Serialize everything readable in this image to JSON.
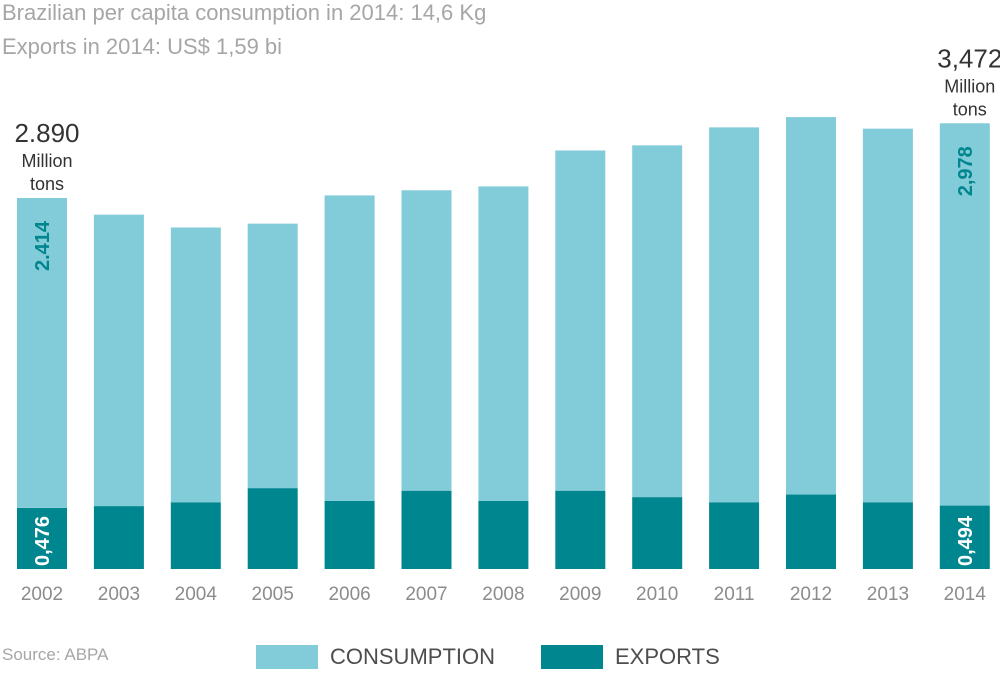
{
  "header": {
    "line1": "Brazilian per capita consumption in 2014: 14,6 Kg",
    "line2": "Exports in 2014: US$ 1,59 bi"
  },
  "source": "Source: ABPA",
  "legend": {
    "consumption": "CONSUMPTION",
    "exports": "EXPORTS"
  },
  "colors": {
    "consumption": "#82cbd8",
    "exports": "#00868f",
    "axis_text": "#8c8c8c",
    "callout_text": "#333333"
  },
  "chart_data": {
    "type": "bar",
    "stacked": true,
    "categories": [
      "2002",
      "2003",
      "2004",
      "2005",
      "2006",
      "2007",
      "2008",
      "2009",
      "2010",
      "2011",
      "2012",
      "2013",
      "2014"
    ],
    "series": [
      {
        "name": "EXPORTS",
        "values": [
          0.476,
          0.49,
          0.52,
          0.63,
          0.53,
          0.61,
          0.53,
          0.61,
          0.56,
          0.52,
          0.58,
          0.52,
          0.494
        ]
      },
      {
        "name": "CONSUMPTION",
        "values": [
          2.414,
          2.27,
          2.14,
          2.06,
          2.38,
          2.34,
          2.45,
          2.65,
          2.74,
          2.92,
          2.94,
          2.91,
          2.978
        ]
      }
    ],
    "totals_callouts": [
      {
        "category": "2002",
        "value": "2.890",
        "unit_line1": "Million",
        "unit_line2": "tons"
      },
      {
        "category": "2014",
        "value": "3,472",
        "unit_line1": "Million",
        "unit_line2": "tons"
      }
    ],
    "segment_labels": [
      {
        "category": "2002",
        "series": "CONSUMPTION",
        "text": "2.414"
      },
      {
        "category": "2002",
        "series": "EXPORTS",
        "text": "0,476"
      },
      {
        "category": "2014",
        "series": "CONSUMPTION",
        "text": "2,978"
      },
      {
        "category": "2014",
        "series": "EXPORTS",
        "text": "0,494"
      }
    ],
    "ylim": [
      0,
      3.7
    ],
    "grid": false
  }
}
